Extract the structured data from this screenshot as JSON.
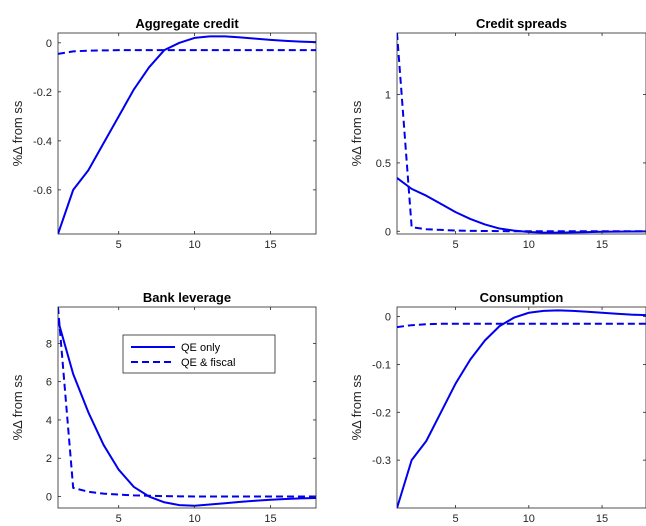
{
  "chart_data": [
    {
      "type": "line",
      "title": "Aggregate credit",
      "ylabel": "%Δ from ss",
      "xlim": [
        1,
        18
      ],
      "ylim": [
        -0.78,
        0.04
      ],
      "xticks": [
        5,
        10,
        15
      ],
      "xticklabels": [
        "5",
        "10",
        "15"
      ],
      "yticks": [
        -0.6,
        -0.4,
        -0.2,
        0
      ],
      "yticklabels": [
        "-0.6",
        "-0.4",
        "-0.2",
        "0"
      ],
      "x": [
        1,
        2,
        3,
        4,
        5,
        6,
        7,
        8,
        9,
        10,
        11,
        12,
        13,
        14,
        15,
        16,
        17,
        18
      ],
      "series": [
        {
          "values": [
            -0.78,
            -0.6,
            -0.52,
            -0.41,
            -0.3,
            -0.19,
            -0.1,
            -0.03,
            0.0,
            0.02,
            0.026,
            0.026,
            0.022,
            0.017,
            0.012,
            0.008,
            0.005,
            0.003
          ],
          "style": "solid"
        },
        {
          "values": [
            -0.045,
            -0.035,
            -0.032,
            -0.031,
            -0.03,
            -0.03,
            -0.03,
            -0.03,
            -0.03,
            -0.03,
            -0.03,
            -0.03,
            -0.03,
            -0.03,
            -0.03,
            -0.03,
            -0.03,
            -0.03
          ],
          "style": "dashed"
        }
      ]
    },
    {
      "type": "line",
      "title": "Credit spreads",
      "ylabel": "%Δ from ss",
      "xlim": [
        1,
        18
      ],
      "ylim": [
        -0.02,
        1.45
      ],
      "xticks": [
        5,
        10,
        15
      ],
      "xticklabels": [
        "5",
        "10",
        "15"
      ],
      "yticks": [
        0,
        0.5,
        1
      ],
      "yticklabels": [
        "0",
        "0.5",
        "1"
      ],
      "x": [
        1,
        2,
        3,
        4,
        5,
        6,
        7,
        8,
        9,
        10,
        11,
        12,
        13,
        14,
        15,
        16,
        17,
        18
      ],
      "series": [
        {
          "values": [
            0.39,
            0.31,
            0.26,
            0.2,
            0.14,
            0.09,
            0.05,
            0.02,
            0.005,
            -0.005,
            -0.01,
            -0.01,
            -0.008,
            -0.006,
            -0.004,
            -0.003,
            -0.002,
            -0.001
          ],
          "style": "solid"
        },
        {
          "values": [
            1.45,
            0.03,
            0.015,
            0.01,
            0.005,
            0.003,
            0.002,
            0.001,
            0.0,
            0.0,
            0.0,
            0.0,
            0.0,
            0.0,
            0.0,
            0.0,
            0.0,
            0.0
          ],
          "style": "dashed"
        }
      ]
    },
    {
      "type": "line",
      "title": "Bank leverage",
      "ylabel": "%Δ from ss",
      "xlim": [
        1,
        18
      ],
      "ylim": [
        -0.6,
        9.9
      ],
      "xticks": [
        5,
        10,
        15
      ],
      "xticklabels": [
        "5",
        "10",
        "15"
      ],
      "yticks": [
        0,
        2,
        4,
        6,
        8
      ],
      "yticklabels": [
        "0",
        "2",
        "4",
        "6",
        "8"
      ],
      "legend": {
        "position": "top-right",
        "entries": [
          "QE only",
          "QE & fiscal"
        ]
      },
      "x": [
        1,
        2,
        3,
        4,
        5,
        6,
        7,
        8,
        9,
        10,
        11,
        12,
        13,
        14,
        15,
        16,
        17,
        18
      ],
      "series": [
        {
          "name": "QE only",
          "values": [
            9.2,
            6.4,
            4.4,
            2.7,
            1.4,
            0.5,
            0.0,
            -0.3,
            -0.45,
            -0.48,
            -0.42,
            -0.35,
            -0.28,
            -0.22,
            -0.17,
            -0.13,
            -0.1,
            -0.08
          ],
          "style": "solid"
        },
        {
          "name": "QE & fiscal",
          "values": [
            9.9,
            0.45,
            0.25,
            0.15,
            0.1,
            0.06,
            0.04,
            0.02,
            0.01,
            0.0,
            0.0,
            0.0,
            0.0,
            0.0,
            0.0,
            0.0,
            0.0,
            0.0
          ],
          "style": "dashed"
        }
      ]
    },
    {
      "type": "line",
      "title": "Consumption",
      "ylabel": "%Δ from ss",
      "xlim": [
        1,
        18
      ],
      "ylim": [
        -0.4,
        0.02
      ],
      "xticks": [
        5,
        10,
        15
      ],
      "xticklabels": [
        "5",
        "10",
        "15"
      ],
      "yticks": [
        -0.3,
        -0.2,
        -0.1,
        0
      ],
      "yticklabels": [
        "-0.3",
        "-0.2",
        "-0.1",
        "0"
      ],
      "x": [
        1,
        2,
        3,
        4,
        5,
        6,
        7,
        8,
        9,
        10,
        11,
        12,
        13,
        14,
        15,
        16,
        17,
        18
      ],
      "series": [
        {
          "values": [
            -0.4,
            -0.3,
            -0.26,
            -0.2,
            -0.14,
            -0.09,
            -0.05,
            -0.02,
            -0.002,
            0.008,
            0.012,
            0.013,
            0.012,
            0.01,
            0.008,
            0.006,
            0.004,
            0.003
          ],
          "style": "solid"
        },
        {
          "values": [
            -0.022,
            -0.018,
            -0.016,
            -0.015,
            -0.015,
            -0.015,
            -0.015,
            -0.015,
            -0.015,
            -0.015,
            -0.015,
            -0.015,
            -0.015,
            -0.015,
            -0.015,
            -0.015,
            -0.015,
            -0.015
          ],
          "style": "dashed"
        }
      ]
    }
  ],
  "colors": {
    "line": "#0000ee",
    "axis": "#262626"
  }
}
